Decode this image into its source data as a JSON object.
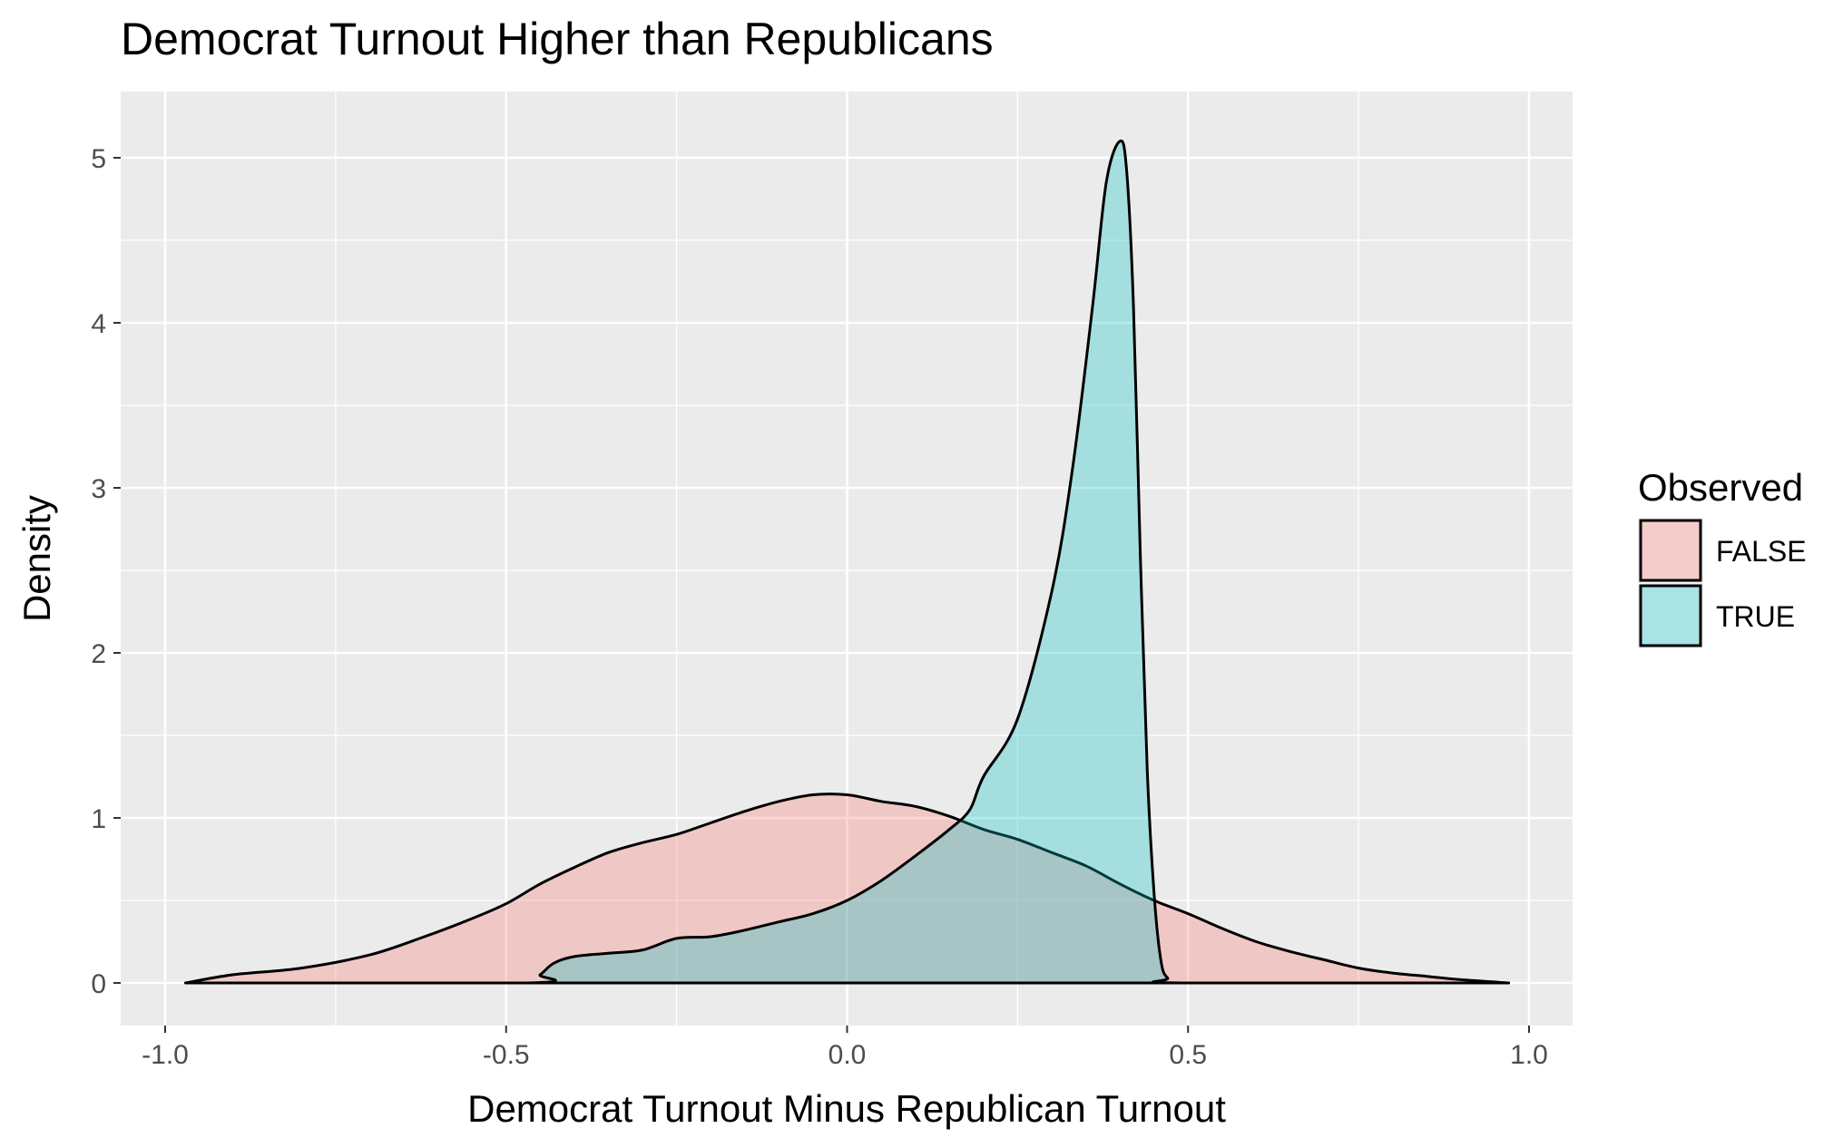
{
  "chart_data": {
    "type": "area",
    "title": "Democrat Turnout Higher than Republicans",
    "xlabel": "Democrat Turnout Minus Republican Turnout",
    "ylabel": "Density",
    "xlim": [
      -1.0,
      1.0
    ],
    "ylim": [
      0,
      5.2
    ],
    "x_ticks": [
      "-1.0",
      "-0.5",
      "0.0",
      "0.5",
      "1.0"
    ],
    "y_ticks": [
      "0",
      "1",
      "2",
      "3",
      "4",
      "5"
    ],
    "grid": true,
    "legend": {
      "title": "Observed",
      "position": "right",
      "entries": [
        "FALSE",
        "TRUE"
      ]
    },
    "series": [
      {
        "name": "FALSE",
        "color": "#F8766D",
        "points": [
          [
            -0.97,
            0.0
          ],
          [
            -0.9,
            0.05
          ],
          [
            -0.8,
            0.09
          ],
          [
            -0.7,
            0.17
          ],
          [
            -0.62,
            0.28
          ],
          [
            -0.55,
            0.39
          ],
          [
            -0.5,
            0.48
          ],
          [
            -0.45,
            0.6
          ],
          [
            -0.4,
            0.7
          ],
          [
            -0.35,
            0.79
          ],
          [
            -0.3,
            0.85
          ],
          [
            -0.25,
            0.9
          ],
          [
            -0.2,
            0.97
          ],
          [
            -0.15,
            1.04
          ],
          [
            -0.1,
            1.1
          ],
          [
            -0.05,
            1.14
          ],
          [
            0.0,
            1.14
          ],
          [
            0.05,
            1.1
          ],
          [
            0.1,
            1.07
          ],
          [
            0.15,
            1.01
          ],
          [
            0.2,
            0.93
          ],
          [
            0.25,
            0.87
          ],
          [
            0.3,
            0.79
          ],
          [
            0.35,
            0.71
          ],
          [
            0.4,
            0.6
          ],
          [
            0.45,
            0.5
          ],
          [
            0.5,
            0.42
          ],
          [
            0.55,
            0.33
          ],
          [
            0.6,
            0.25
          ],
          [
            0.65,
            0.19
          ],
          [
            0.7,
            0.14
          ],
          [
            0.75,
            0.09
          ],
          [
            0.8,
            0.06
          ],
          [
            0.85,
            0.04
          ],
          [
            0.9,
            0.02
          ],
          [
            0.97,
            0.0
          ]
        ]
      },
      {
        "name": "TRUE",
        "color": "#00BFC4",
        "points": [
          [
            -0.97,
            0.0
          ],
          [
            -0.47,
            0.0
          ],
          [
            -0.45,
            0.05
          ],
          [
            -0.43,
            0.12
          ],
          [
            -0.4,
            0.16
          ],
          [
            -0.35,
            0.18
          ],
          [
            -0.3,
            0.2
          ],
          [
            -0.25,
            0.27
          ],
          [
            -0.2,
            0.28
          ],
          [
            -0.15,
            0.32
          ],
          [
            -0.1,
            0.37
          ],
          [
            -0.05,
            0.42
          ],
          [
            0.0,
            0.5
          ],
          [
            0.05,
            0.62
          ],
          [
            0.1,
            0.77
          ],
          [
            0.15,
            0.93
          ],
          [
            0.18,
            1.05
          ],
          [
            0.2,
            1.25
          ],
          [
            0.25,
            1.6
          ],
          [
            0.3,
            2.37
          ],
          [
            0.33,
            3.1
          ],
          [
            0.36,
            4.1
          ],
          [
            0.38,
            4.85
          ],
          [
            0.4,
            5.1
          ],
          [
            0.41,
            4.92
          ],
          [
            0.42,
            4.1
          ],
          [
            0.43,
            2.6
          ],
          [
            0.44,
            1.3
          ],
          [
            0.45,
            0.55
          ],
          [
            0.46,
            0.14
          ],
          [
            0.47,
            0.03
          ],
          [
            0.49,
            0.0
          ],
          [
            0.97,
            0.0
          ]
        ]
      }
    ]
  }
}
